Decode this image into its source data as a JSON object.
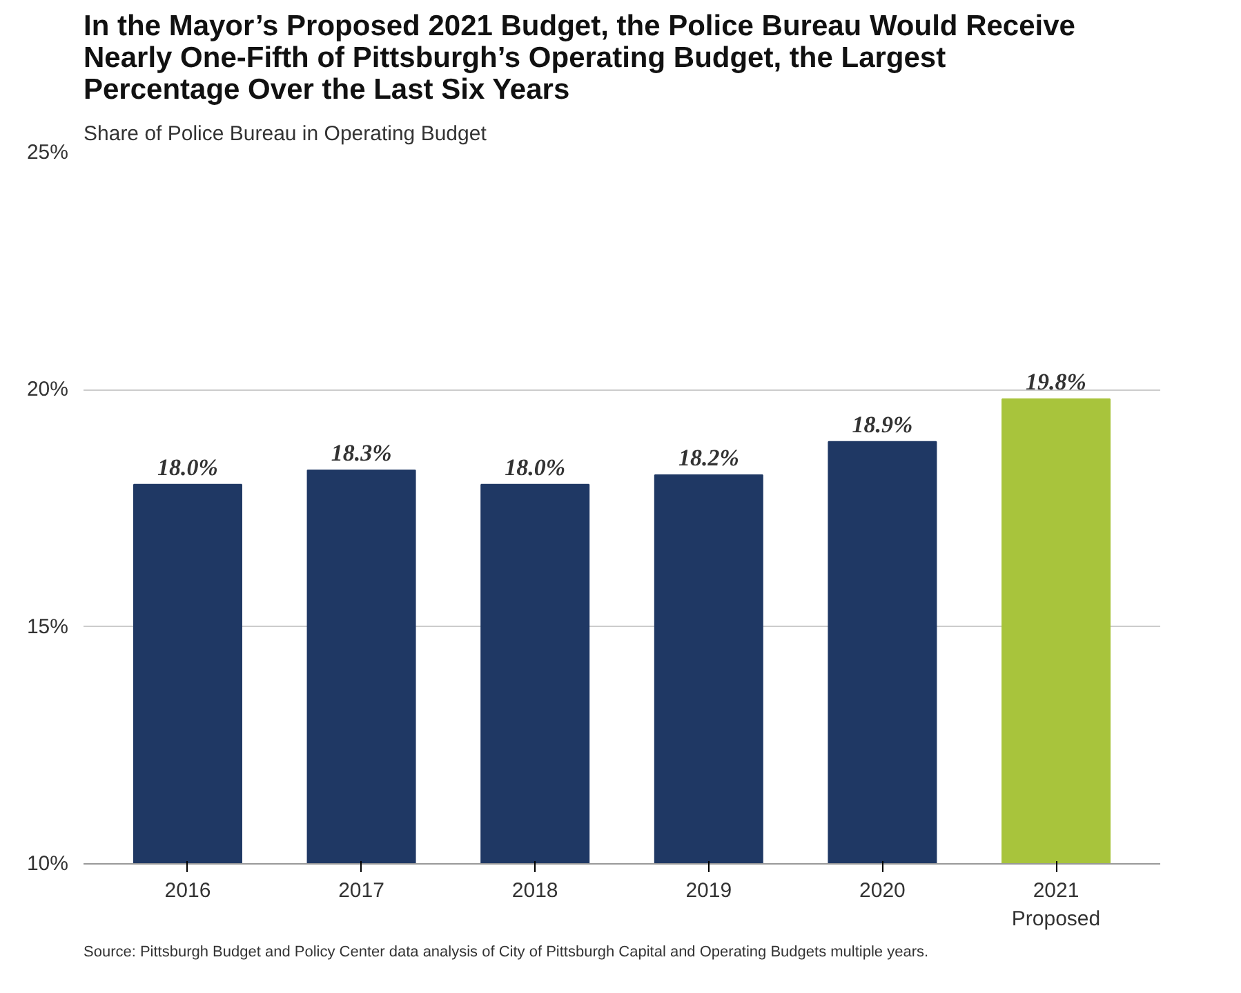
{
  "chart_data": {
    "type": "bar",
    "title": "In the Mayor’s Proposed 2021 Budget, the Police Bureau Would Receive Nearly One-Fifth of Pittsburgh’s Operating Budget, the Largest Percentage Over the Last Six Years",
    "subtitle": "Share of Police Bureau in Operating Budget",
    "categories": [
      "2016",
      "2017",
      "2018",
      "2019",
      "2020",
      "2021\nProposed"
    ],
    "values": [
      18.0,
      18.3,
      18.0,
      18.2,
      18.9,
      19.8
    ],
    "colors": [
      "#1f3864",
      "#1f3864",
      "#1f3864",
      "#1f3864",
      "#1f3864",
      "#a8c43c"
    ],
    "value_labels": [
      "18.0%",
      "18.3%",
      "18.0%",
      "18.2%",
      "18.9%",
      "19.8%"
    ],
    "ylim": [
      10,
      25
    ],
    "yticks": [
      {
        "value": 10,
        "label": "10%"
      },
      {
        "value": 15,
        "label": "15%"
      },
      {
        "value": 20,
        "label": "20%"
      },
      {
        "value": 25,
        "label": "25%"
      }
    ],
    "grid": "y",
    "annotations": [
      "Source: Pittsburgh Budget and Policy Center data analysis of City of Pittsburgh Capital and Operating Budgets multiple years."
    ]
  }
}
